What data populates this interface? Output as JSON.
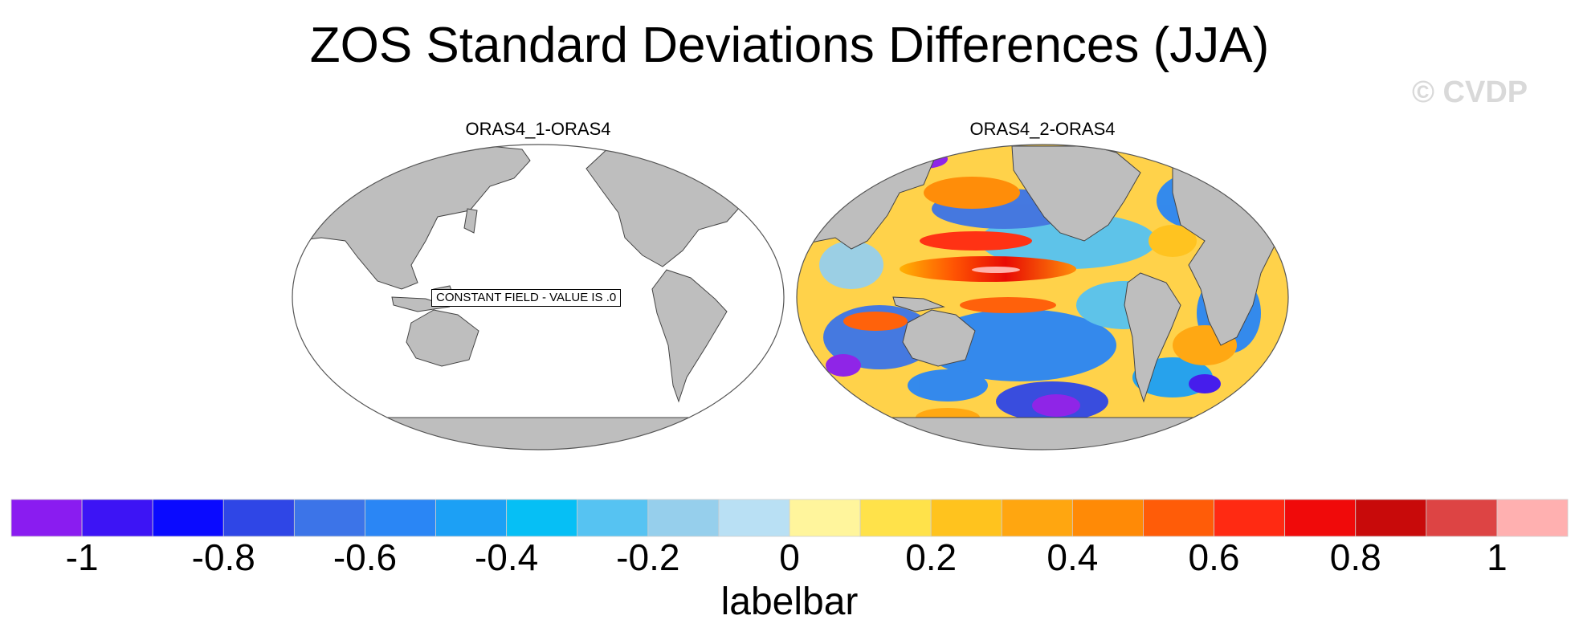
{
  "title": "ZOS Standard Deviations Differences (JJA)",
  "watermark": "© CVDP",
  "panels": [
    {
      "title": "ORAS4_1-ORAS4",
      "annotation": "CONSTANT FIELD - VALUE IS .0"
    },
    {
      "title": "ORAS4_2-ORAS4"
    }
  ],
  "labelbar": {
    "title": "labelbar",
    "min": -1.1,
    "max": 1.1,
    "tick_values": [
      -1,
      -0.8,
      -0.6,
      -0.4,
      -0.2,
      0,
      0.2,
      0.4,
      0.6,
      0.8,
      1
    ],
    "tick_labels": [
      "-1",
      "-0.8",
      "-0.6",
      "-0.4",
      "-0.2",
      "0",
      "0.2",
      "0.4",
      "0.6",
      "0.8",
      "1"
    ],
    "colors": [
      "#8a1cf0",
      "#3d14f5",
      "#0a0aff",
      "#2f46e6",
      "#3c74e8",
      "#2a86f5",
      "#1ca0f5",
      "#06bff5",
      "#56c3f2",
      "#96cfec",
      "#b9e0f4",
      "#fff59c",
      "#ffe24a",
      "#ffc31e",
      "#ffa610",
      "#ff8a06",
      "#ff5c08",
      "#ff2a12",
      "#f00a0a",
      "#c80a0a",
      "#dd4444",
      "#ffb0b0"
    ]
  }
}
